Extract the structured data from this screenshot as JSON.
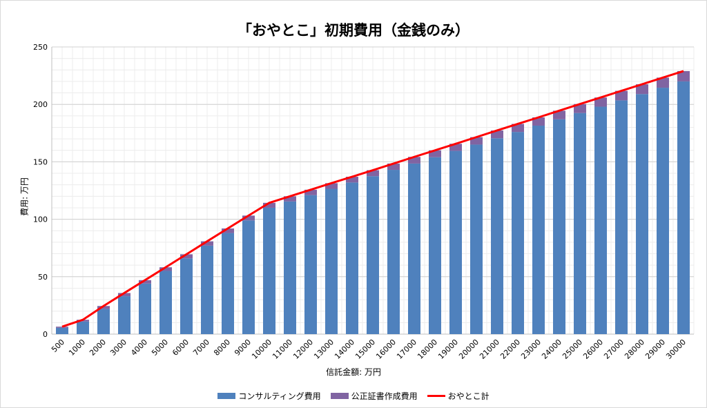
{
  "chart_data": {
    "type": "bar",
    "title": "「おやとこ」初期費用（金銭のみ）",
    "xlabel": "信託金額: 万円",
    "ylabel": "費用: 万円",
    "ylim": [
      0,
      250
    ],
    "yticks": [
      0,
      50,
      100,
      150,
      200,
      250
    ],
    "grid": true,
    "legend_position": "bottom",
    "categories": [
      "500",
      "1000",
      "2000",
      "3000",
      "4000",
      "5000",
      "6000",
      "7000",
      "8000",
      "9000",
      "10000",
      "11000",
      "12000",
      "13000",
      "14000",
      "15000",
      "16000",
      "17000",
      "18000",
      "19000",
      "20000",
      "21000",
      "22000",
      "23000",
      "24000",
      "25000",
      "26000",
      "27000",
      "28000",
      "29000",
      "30000"
    ],
    "series": [
      {
        "name": "コンサルティング費用",
        "kind": "bar-stack",
        "color": "#4f81bd",
        "values": [
          5.5,
          11,
          22,
          33,
          44,
          55,
          66,
          77,
          88,
          99,
          110,
          115.5,
          121,
          126.5,
          132,
          137.5,
          143,
          148.5,
          154,
          159.5,
          165,
          170.5,
          176,
          181.5,
          187,
          192.5,
          198,
          203.5,
          209,
          214.5,
          220
        ]
      },
      {
        "name": "公正証書作成費用",
        "kind": "bar-stack",
        "color": "#8064a2",
        "values": [
          1,
          1.5,
          2.5,
          2.8,
          3,
          3.2,
          3.5,
          3.8,
          4,
          4.2,
          4.3,
          4.5,
          4.7,
          4.9,
          5,
          5.2,
          5.5,
          5.8,
          6,
          6.2,
          6.5,
          6.8,
          7,
          7.2,
          7.5,
          7.8,
          8,
          8.3,
          8.5,
          8.8,
          9
        ]
      },
      {
        "name": "おやとこ計",
        "kind": "line",
        "color": "#ff0000",
        "values": [
          6.5,
          12.5,
          24.5,
          35.8,
          47,
          58.2,
          69.5,
          80.8,
          92,
          103.2,
          114.3,
          120,
          125.7,
          131.4,
          137,
          142.7,
          148.5,
          154.3,
          160,
          165.7,
          171.5,
          177.3,
          183,
          188.7,
          194.5,
          200.3,
          206,
          211.8,
          217.5,
          223.3,
          229
        ]
      }
    ]
  }
}
